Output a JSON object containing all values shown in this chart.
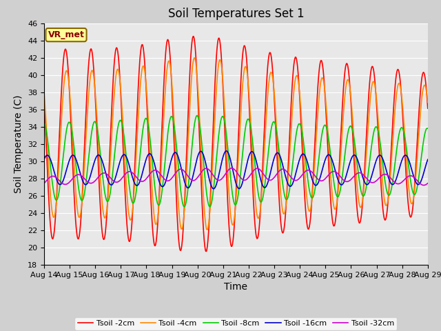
{
  "title": "Soil Temperatures Set 1",
  "xlabel": "Time",
  "ylabel": "Soil Temperature (C)",
  "ylim": [
    18,
    46
  ],
  "xlim_days": [
    0,
    15
  ],
  "x_tick_labels": [
    "Aug 14",
    "Aug 15",
    "Aug 16",
    "Aug 17",
    "Aug 18",
    "Aug 19",
    "Aug 20",
    "Aug 21",
    "Aug 22",
    "Aug 23",
    "Aug 24",
    "Aug 25",
    "Aug 26",
    "Aug 27",
    "Aug 28",
    "Aug 29"
  ],
  "line_colors": [
    "#ff0000",
    "#ff8800",
    "#00cc00",
    "#0000cc",
    "#cc00cc"
  ],
  "line_labels": [
    "Tsoil -2cm",
    "Tsoil -4cm",
    "Tsoil -8cm",
    "Tsoil -16cm",
    "Tsoil -32cm"
  ],
  "line_widths": [
    1.2,
    1.2,
    1.2,
    1.2,
    1.2
  ],
  "background_color": "#d0d0d0",
  "plot_bg_color": "#e8e8e8",
  "annotation_text": "VR_met",
  "annotation_bg": "#ffff99",
  "annotation_border": "#886600",
  "title_fontsize": 12,
  "label_fontsize": 10,
  "tick_fontsize": 8
}
